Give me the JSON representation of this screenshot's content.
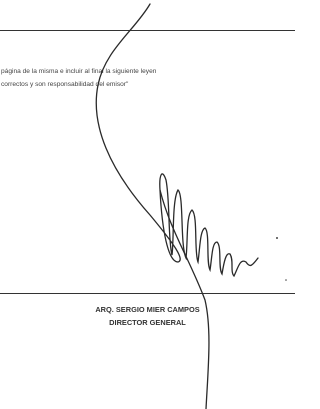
{
  "document": {
    "lines": [
      "página de la misma e incluir al final la siguiente leyen",
      "correctos y son responsabilidad del emisor\""
    ],
    "signatory": {
      "name": "ARQ. SERGIO MIER CAMPOS",
      "title": "DIRECTOR GENERAL"
    }
  }
}
